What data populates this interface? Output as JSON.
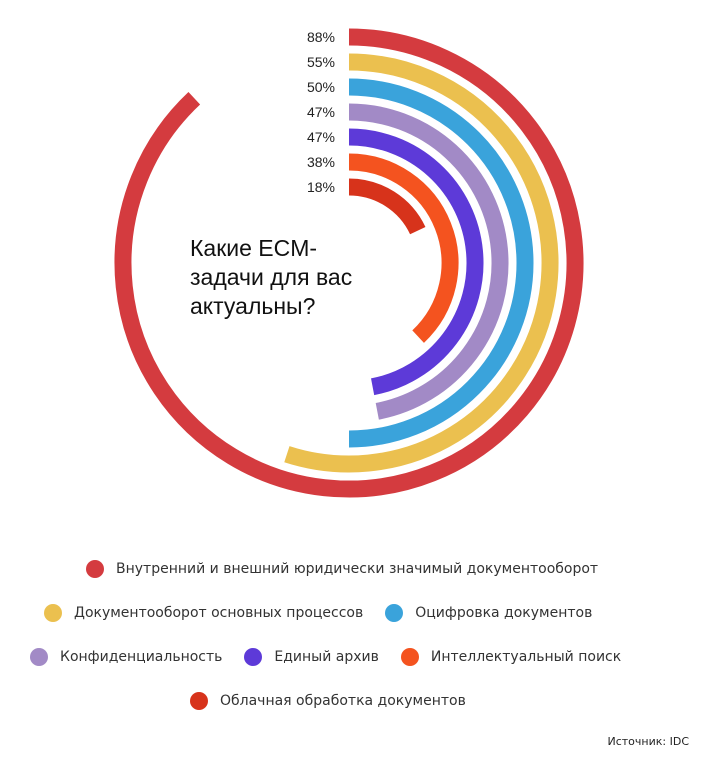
{
  "chart_data": {
    "type": "radial-bar",
    "title": "Какие ECM-задачи для вас актуальны?",
    "max": 100,
    "series": [
      {
        "name": "Внутренний и внешний юридически значимый документооборот",
        "value": 88,
        "label": "88%",
        "color": "#d43b3f"
      },
      {
        "name": "Документооборот основных процессов",
        "value": 55,
        "label": "55%",
        "color": "#ebc04f"
      },
      {
        "name": "Оцифровка документов",
        "value": 50,
        "label": "50%",
        "color": "#3aa3db"
      },
      {
        "name": "Конфиденциальность",
        "value": 47,
        "label": "47%",
        "color": "#a28ac6"
      },
      {
        "name": "Единый архив",
        "value": 47,
        "label": "47%",
        "color": "#5d3ad8"
      },
      {
        "name": "Интеллектуальный поиск",
        "value": 38,
        "label": "38%",
        "color": "#f4531f"
      },
      {
        "name": "Облачная обработка документов",
        "value": 18,
        "label": "18%",
        "color": "#d7331b"
      }
    ]
  },
  "source": "Источник: IDC"
}
